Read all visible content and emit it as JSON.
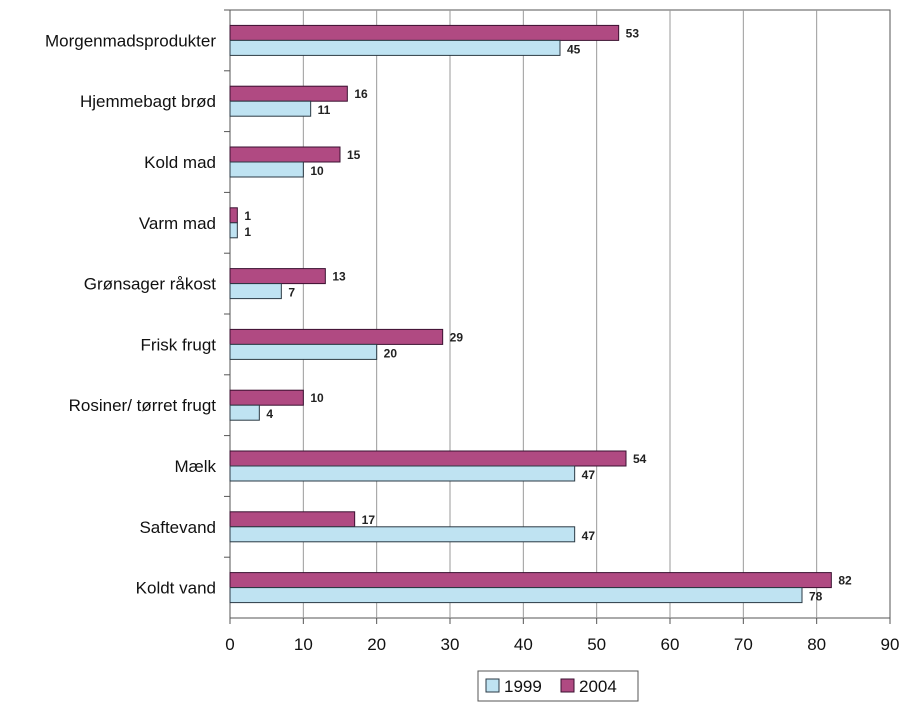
{
  "chart_data": {
    "type": "bar",
    "orientation": "horizontal",
    "categories": [
      "Morgenmadsprodukter",
      "Hjemmebagt brød",
      "Kold mad",
      "Varm mad",
      "Grønsager råkost",
      "Frisk frugt",
      "Rosiner/ tørret frugt",
      "Mælk",
      "Saftevand",
      "Koldt vand"
    ],
    "series": [
      {
        "name": "1999",
        "color": "#bfe3f2",
        "values": [
          45,
          11,
          10,
          1,
          7,
          20,
          4,
          47,
          47,
          78
        ]
      },
      {
        "name": "2004",
        "color": "#b04a82",
        "values": [
          53,
          16,
          15,
          1,
          13,
          29,
          10,
          54,
          17,
          82
        ]
      }
    ],
    "xlim": [
      0,
      90
    ],
    "xticks": [
      0,
      10,
      20,
      30,
      40,
      50,
      60,
      70,
      80,
      90
    ],
    "grid": true,
    "legend_position": "bottom"
  }
}
